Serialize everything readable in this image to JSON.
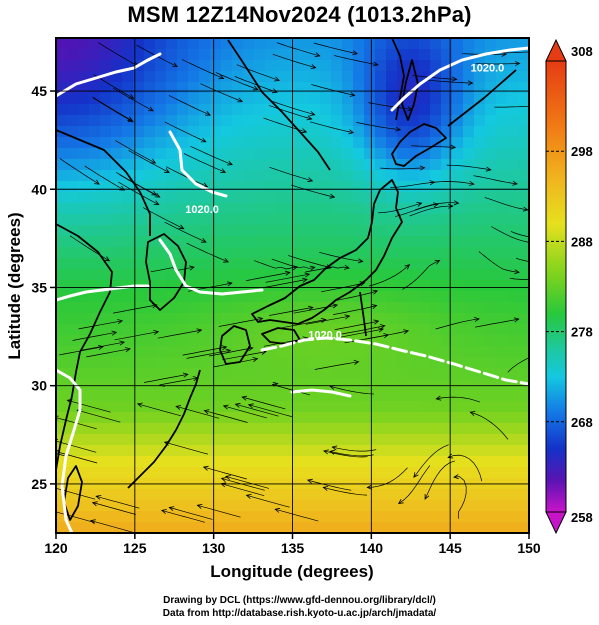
{
  "title": "MSM 12Z14Nov2024 (1013.2hPa)",
  "map": {
    "lon_range": [
      120,
      150
    ],
    "lat_range": [
      22.5,
      47.7
    ],
    "x_ticks": [
      "120",
      "125",
      "130",
      "135",
      "140",
      "145",
      "150"
    ],
    "y_ticks": [
      "25",
      "30",
      "35",
      "40",
      "45"
    ],
    "x_label": "Longitude (degrees)",
    "y_label": "Latitude  (degrees)",
    "grid": true,
    "isobar_labels": [
      {
        "text": "1020.0",
        "lon": 146.3,
        "lat": 46.0
      },
      {
        "text": "1020.0",
        "lon": 136.0,
        "lat": 32.4
      },
      {
        "text": "1020.0",
        "lon": 128.2,
        "lat": 38.8
      }
    ],
    "features": [
      "temperature-shading",
      "streamlines",
      "isobars",
      "coastlines"
    ]
  },
  "colorbar": {
    "ticks": [
      "308",
      "298",
      "288",
      "278",
      "268",
      "258"
    ],
    "min": 258,
    "max": 308,
    "colors": {
      "magenta": "#c814c8",
      "blue": "#1432c8",
      "cyan": "#14c8e0",
      "green": "#3cc81e",
      "yellow": "#e6e01e",
      "orange": "#f09614",
      "red": "#e63c14"
    }
  },
  "credits": {
    "line1": "Drawing by DCL (https://www.gfd-dennou.org/library/dcl/)",
    "line2": "Data from http://database.rish.kyoto-u.ac.jp/arch/jmadata/"
  }
}
